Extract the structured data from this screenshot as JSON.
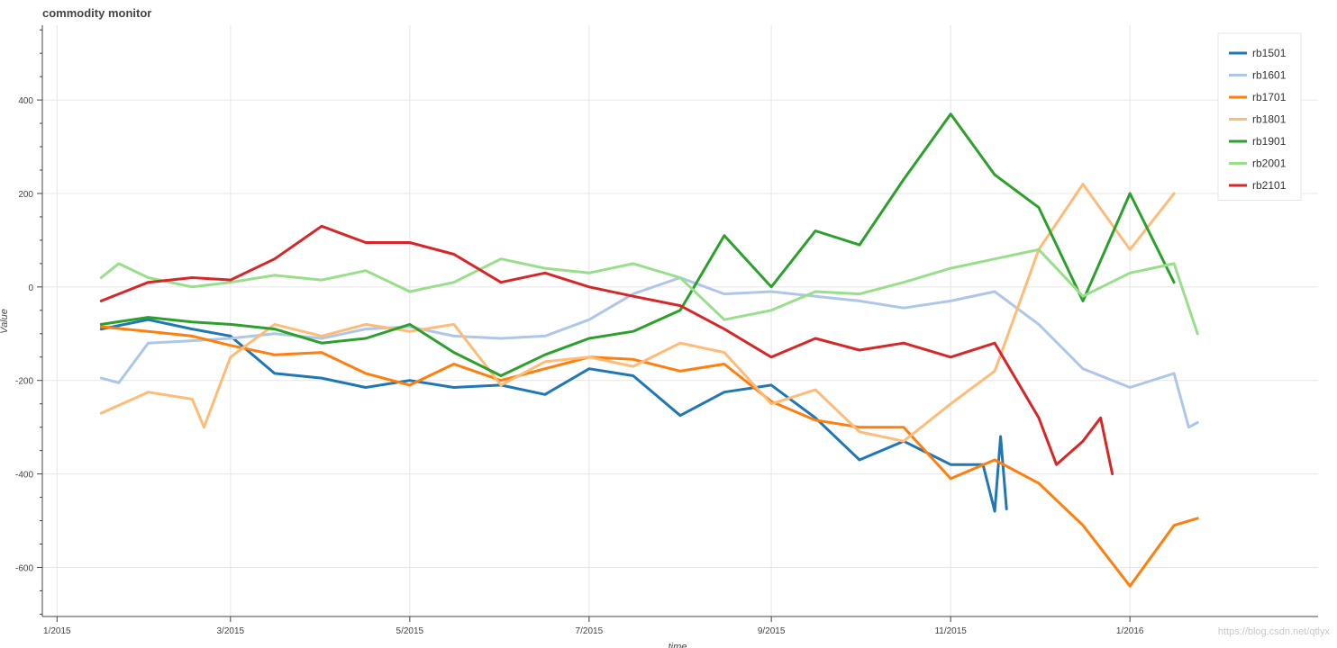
{
  "chart_data": {
    "type": "line",
    "title": "commodity monitor",
    "xlabel": "time",
    "ylabel": "Value",
    "x_range": [
      "2014-12-27",
      "2016-03-05"
    ],
    "ylim": [
      -705,
      560
    ],
    "x_ticks": [
      {
        "date": "2015-01-01",
        "label": "1/2015"
      },
      {
        "date": "2015-03-01",
        "label": "3/2015"
      },
      {
        "date": "2015-05-01",
        "label": "5/2015"
      },
      {
        "date": "2015-07-01",
        "label": "7/2015"
      },
      {
        "date": "2015-09-01",
        "label": "9/2015"
      },
      {
        "date": "2015-11-01",
        "label": "11/2015"
      },
      {
        "date": "2016-01-01",
        "label": "1/2016"
      }
    ],
    "y_ticks": [
      -600,
      -400,
      -200,
      0,
      200,
      400
    ],
    "grid": true,
    "legend_position": "top-right",
    "series": [
      {
        "name": "rb1501",
        "color": "#1f77b4",
        "points": [
          [
            "2015-01-16",
            -90
          ],
          [
            "2015-02-01",
            -70
          ],
          [
            "2015-02-16",
            -90
          ],
          [
            "2015-03-01",
            -105
          ],
          [
            "2015-03-16",
            -185
          ],
          [
            "2015-04-01",
            -195
          ],
          [
            "2015-04-16",
            -215
          ],
          [
            "2015-05-01",
            -200
          ],
          [
            "2015-05-16",
            -215
          ],
          [
            "2015-06-01",
            -210
          ],
          [
            "2015-06-16",
            -230
          ],
          [
            "2015-07-01",
            -175
          ],
          [
            "2015-07-16",
            -190
          ],
          [
            "2015-08-01",
            -275
          ],
          [
            "2015-08-16",
            -225
          ],
          [
            "2015-09-01",
            -210
          ],
          [
            "2015-09-16",
            -280
          ],
          [
            "2015-10-01",
            -370
          ],
          [
            "2015-10-16",
            -330
          ],
          [
            "2015-11-01",
            -380
          ],
          [
            "2015-11-12",
            -380
          ],
          [
            "2015-11-16",
            -480
          ],
          [
            "2015-11-18",
            -320
          ],
          [
            "2015-11-20",
            -475
          ]
        ]
      },
      {
        "name": "rb1601",
        "color": "#aec7e8",
        "points": [
          [
            "2015-01-16",
            -195
          ],
          [
            "2015-01-22",
            -205
          ],
          [
            "2015-02-01",
            -120
          ],
          [
            "2015-02-16",
            -115
          ],
          [
            "2015-03-01",
            -110
          ],
          [
            "2015-03-16",
            -100
          ],
          [
            "2015-04-01",
            -110
          ],
          [
            "2015-04-16",
            -90
          ],
          [
            "2015-05-01",
            -85
          ],
          [
            "2015-05-16",
            -105
          ],
          [
            "2015-06-01",
            -110
          ],
          [
            "2015-06-16",
            -105
          ],
          [
            "2015-07-01",
            -70
          ],
          [
            "2015-07-16",
            -15
          ],
          [
            "2015-08-01",
            20
          ],
          [
            "2015-08-16",
            -15
          ],
          [
            "2015-09-01",
            -10
          ],
          [
            "2015-09-16",
            -20
          ],
          [
            "2015-10-01",
            -30
          ],
          [
            "2015-10-16",
            -45
          ],
          [
            "2015-11-01",
            -30
          ],
          [
            "2015-11-16",
            -10
          ],
          [
            "2015-12-01",
            -80
          ],
          [
            "2015-12-16",
            -175
          ],
          [
            "2016-01-01",
            -215
          ],
          [
            "2016-01-16",
            -185
          ],
          [
            "2016-01-21",
            -300
          ],
          [
            "2016-01-24",
            -290
          ]
        ]
      },
      {
        "name": "rb1701",
        "color": "#ff7f0e",
        "points": [
          [
            "2015-01-16",
            -85
          ],
          [
            "2015-02-01",
            -95
          ],
          [
            "2015-02-16",
            -105
          ],
          [
            "2015-03-01",
            -125
          ],
          [
            "2015-03-16",
            -145
          ],
          [
            "2015-04-01",
            -140
          ],
          [
            "2015-04-16",
            -185
          ],
          [
            "2015-05-01",
            -210
          ],
          [
            "2015-05-16",
            -165
          ],
          [
            "2015-06-01",
            -200
          ],
          [
            "2015-06-16",
            -175
          ],
          [
            "2015-07-01",
            -150
          ],
          [
            "2015-07-16",
            -155
          ],
          [
            "2015-08-01",
            -180
          ],
          [
            "2015-08-16",
            -165
          ],
          [
            "2015-09-01",
            -245
          ],
          [
            "2015-09-16",
            -285
          ],
          [
            "2015-10-01",
            -300
          ],
          [
            "2015-10-16",
            -300
          ],
          [
            "2015-11-01",
            -410
          ],
          [
            "2015-11-16",
            -370
          ],
          [
            "2015-12-01",
            -420
          ],
          [
            "2015-12-16",
            -510
          ],
          [
            "2016-01-01",
            -640
          ],
          [
            "2016-01-16",
            -510
          ],
          [
            "2016-01-24",
            -495
          ]
        ]
      },
      {
        "name": "rb1801",
        "color": "#ffbb78",
        "points": [
          [
            "2015-01-16",
            -270
          ],
          [
            "2015-02-01",
            -225
          ],
          [
            "2015-02-16",
            -240
          ],
          [
            "2015-02-20",
            -300
          ],
          [
            "2015-03-01",
            -150
          ],
          [
            "2015-03-16",
            -80
          ],
          [
            "2015-04-01",
            -105
          ],
          [
            "2015-04-16",
            -80
          ],
          [
            "2015-05-01",
            -95
          ],
          [
            "2015-05-16",
            -80
          ],
          [
            "2015-06-01",
            -210
          ],
          [
            "2015-06-16",
            -160
          ],
          [
            "2015-07-01",
            -150
          ],
          [
            "2015-07-16",
            -170
          ],
          [
            "2015-08-01",
            -120
          ],
          [
            "2015-08-16",
            -140
          ],
          [
            "2015-09-01",
            -250
          ],
          [
            "2015-09-16",
            -220
          ],
          [
            "2015-10-01",
            -310
          ],
          [
            "2015-10-16",
            -330
          ],
          [
            "2015-11-01",
            -250
          ],
          [
            "2015-11-16",
            -180
          ],
          [
            "2015-12-01",
            80
          ],
          [
            "2015-12-16",
            220
          ],
          [
            "2016-01-01",
            80
          ],
          [
            "2016-01-16",
            200
          ]
        ]
      },
      {
        "name": "rb1901",
        "color": "#2ca02c",
        "points": [
          [
            "2015-01-16",
            -80
          ],
          [
            "2015-02-01",
            -65
          ],
          [
            "2015-02-16",
            -75
          ],
          [
            "2015-03-01",
            -80
          ],
          [
            "2015-03-16",
            -90
          ],
          [
            "2015-04-01",
            -120
          ],
          [
            "2015-04-16",
            -110
          ],
          [
            "2015-05-01",
            -80
          ],
          [
            "2015-05-16",
            -140
          ],
          [
            "2015-06-01",
            -190
          ],
          [
            "2015-06-16",
            -145
          ],
          [
            "2015-07-01",
            -110
          ],
          [
            "2015-07-16",
            -95
          ],
          [
            "2015-08-01",
            -50
          ],
          [
            "2015-08-16",
            110
          ],
          [
            "2015-09-01",
            0
          ],
          [
            "2015-09-16",
            120
          ],
          [
            "2015-10-01",
            90
          ],
          [
            "2015-10-16",
            230
          ],
          [
            "2015-11-01",
            370
          ],
          [
            "2015-11-16",
            240
          ],
          [
            "2015-12-01",
            170
          ],
          [
            "2015-12-16",
            -30
          ],
          [
            "2016-01-01",
            200
          ],
          [
            "2016-01-16",
            10
          ]
        ]
      },
      {
        "name": "rb2001",
        "color": "#98df8a",
        "points": [
          [
            "2015-01-16",
            20
          ],
          [
            "2015-01-22",
            50
          ],
          [
            "2015-02-01",
            20
          ],
          [
            "2015-02-16",
            0
          ],
          [
            "2015-03-01",
            10
          ],
          [
            "2015-03-16",
            25
          ],
          [
            "2015-04-01",
            15
          ],
          [
            "2015-04-16",
            35
          ],
          [
            "2015-05-01",
            -10
          ],
          [
            "2015-05-16",
            10
          ],
          [
            "2015-06-01",
            60
          ],
          [
            "2015-06-16",
            40
          ],
          [
            "2015-07-01",
            30
          ],
          [
            "2015-07-16",
            50
          ],
          [
            "2015-08-01",
            20
          ],
          [
            "2015-08-16",
            -70
          ],
          [
            "2015-09-01",
            -50
          ],
          [
            "2015-09-16",
            -10
          ],
          [
            "2015-10-01",
            -15
          ],
          [
            "2015-10-16",
            10
          ],
          [
            "2015-11-01",
            40
          ],
          [
            "2015-11-16",
            60
          ],
          [
            "2015-12-01",
            80
          ],
          [
            "2015-12-16",
            -20
          ],
          [
            "2016-01-01",
            30
          ],
          [
            "2016-01-16",
            50
          ],
          [
            "2016-01-24",
            -100
          ]
        ]
      },
      {
        "name": "rb2101",
        "color": "#d62728",
        "points": [
          [
            "2015-01-16",
            -30
          ],
          [
            "2015-02-01",
            10
          ],
          [
            "2015-02-16",
            20
          ],
          [
            "2015-03-01",
            15
          ],
          [
            "2015-03-16",
            60
          ],
          [
            "2015-04-01",
            130
          ],
          [
            "2015-04-16",
            95
          ],
          [
            "2015-05-01",
            95
          ],
          [
            "2015-05-16",
            70
          ],
          [
            "2015-06-01",
            10
          ],
          [
            "2015-06-16",
            30
          ],
          [
            "2015-07-01",
            0
          ],
          [
            "2015-07-16",
            -20
          ],
          [
            "2015-08-01",
            -40
          ],
          [
            "2015-08-16",
            -90
          ],
          [
            "2015-09-01",
            -150
          ],
          [
            "2015-09-16",
            -110
          ],
          [
            "2015-10-01",
            -135
          ],
          [
            "2015-10-16",
            -120
          ],
          [
            "2015-11-01",
            -150
          ],
          [
            "2015-11-16",
            -120
          ],
          [
            "2015-12-01",
            -280
          ],
          [
            "2015-12-07",
            -380
          ],
          [
            "2015-12-16",
            -330
          ],
          [
            "2015-12-22",
            -280
          ],
          [
            "2015-12-26",
            -400
          ]
        ]
      }
    ]
  },
  "watermark": "https://blog.csdn.net/qtlyx"
}
